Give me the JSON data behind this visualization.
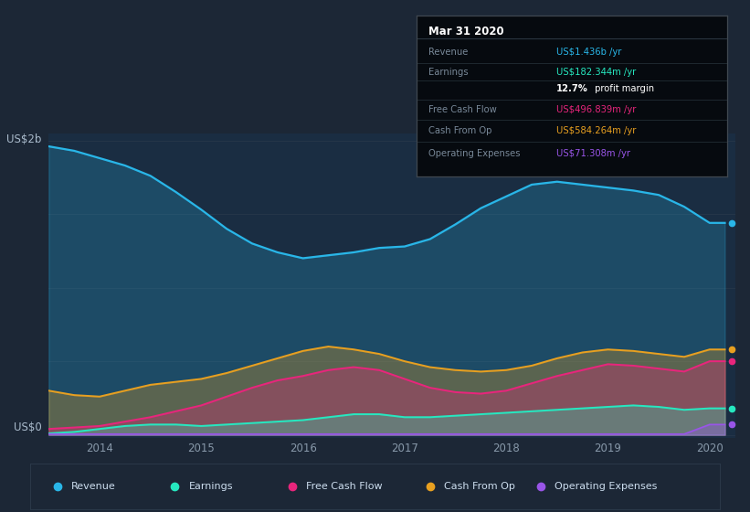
{
  "bg_color": "#1c2736",
  "plot_bg_color": "#1a2d42",
  "series_colors": {
    "Revenue": "#29b6e8",
    "Earnings": "#26e8c0",
    "Free Cash Flow": "#e8257c",
    "Cash From Op": "#e8a020",
    "Operating Expenses": "#9955e8"
  },
  "x_data": [
    2013.5,
    2013.75,
    2014.0,
    2014.25,
    2014.5,
    2014.75,
    2015.0,
    2015.25,
    2015.5,
    2015.75,
    2016.0,
    2016.25,
    2016.5,
    2016.75,
    2017.0,
    2017.25,
    2017.5,
    2017.75,
    2018.0,
    2018.25,
    2018.5,
    2018.75,
    2019.0,
    2019.25,
    2019.5,
    2019.75,
    2020.0,
    2020.15
  ],
  "revenue": [
    1.96,
    1.93,
    1.88,
    1.83,
    1.76,
    1.65,
    1.53,
    1.4,
    1.3,
    1.24,
    1.2,
    1.22,
    1.24,
    1.27,
    1.28,
    1.33,
    1.43,
    1.54,
    1.62,
    1.7,
    1.72,
    1.7,
    1.68,
    1.66,
    1.63,
    1.55,
    1.44,
    1.44
  ],
  "cash_from_op": [
    0.3,
    0.27,
    0.26,
    0.3,
    0.34,
    0.36,
    0.38,
    0.42,
    0.47,
    0.52,
    0.57,
    0.6,
    0.58,
    0.55,
    0.5,
    0.46,
    0.44,
    0.43,
    0.44,
    0.47,
    0.52,
    0.56,
    0.58,
    0.57,
    0.55,
    0.53,
    0.58,
    0.58
  ],
  "free_cash_flow": [
    0.04,
    0.05,
    0.06,
    0.09,
    0.12,
    0.16,
    0.2,
    0.26,
    0.32,
    0.37,
    0.4,
    0.44,
    0.46,
    0.44,
    0.38,
    0.32,
    0.29,
    0.28,
    0.3,
    0.35,
    0.4,
    0.44,
    0.48,
    0.47,
    0.45,
    0.43,
    0.5,
    0.5
  ],
  "earnings": [
    0.01,
    0.02,
    0.04,
    0.06,
    0.07,
    0.07,
    0.06,
    0.07,
    0.08,
    0.09,
    0.1,
    0.12,
    0.14,
    0.14,
    0.12,
    0.12,
    0.13,
    0.14,
    0.15,
    0.16,
    0.17,
    0.18,
    0.19,
    0.2,
    0.19,
    0.17,
    0.18,
    0.18
  ],
  "op_expenses": [
    0.005,
    0.005,
    0.005,
    0.005,
    0.005,
    0.005,
    0.005,
    0.005,
    0.005,
    0.005,
    0.005,
    0.005,
    0.005,
    0.005,
    0.005,
    0.005,
    0.005,
    0.005,
    0.005,
    0.005,
    0.005,
    0.005,
    0.005,
    0.005,
    0.005,
    0.005,
    0.07,
    0.07
  ],
  "xlim": [
    2013.5,
    2020.25
  ],
  "ylim": [
    -0.02,
    2.05
  ],
  "yticks": [
    0.0,
    0.5,
    1.0,
    1.5,
    2.0
  ],
  "xticks": [
    2014,
    2015,
    2016,
    2017,
    2018,
    2019,
    2020
  ],
  "xlabel_ticks": [
    "2014",
    "2015",
    "2016",
    "2017",
    "2018",
    "2019",
    "2020"
  ],
  "y2b_label": "US$2b",
  "y0_label": "US$0",
  "info_box_title": "Mar 31 2020",
  "info_rows": [
    {
      "label": "Revenue",
      "value": "US$1.436b /yr",
      "vcolor": "#29b6e8",
      "divider": true
    },
    {
      "label": "Earnings",
      "value": "US$182.344m /yr",
      "vcolor": "#26e8c0",
      "divider": false
    },
    {
      "label": "",
      "value": "12.7% profit margin",
      "vcolor": "#ffffff",
      "bold_prefix": "12.7%",
      "divider": true
    },
    {
      "label": "Free Cash Flow",
      "value": "US$496.839m /yr",
      "vcolor": "#e8257c",
      "divider": true
    },
    {
      "label": "Cash From Op",
      "value": "US$584.264m /yr",
      "vcolor": "#e8a020",
      "divider": true
    },
    {
      "label": "Operating Expenses",
      "value": "US$71.308m /yr",
      "vcolor": "#9955e8",
      "divider": false
    }
  ],
  "legend_items": [
    {
      "label": "Revenue",
      "color": "#29b6e8"
    },
    {
      "label": "Earnings",
      "color": "#26e8c0"
    },
    {
      "label": "Free Cash Flow",
      "color": "#e8257c"
    },
    {
      "label": "Cash From Op",
      "color": "#e8a020"
    },
    {
      "label": "Operating Expenses",
      "color": "#9955e8"
    }
  ]
}
